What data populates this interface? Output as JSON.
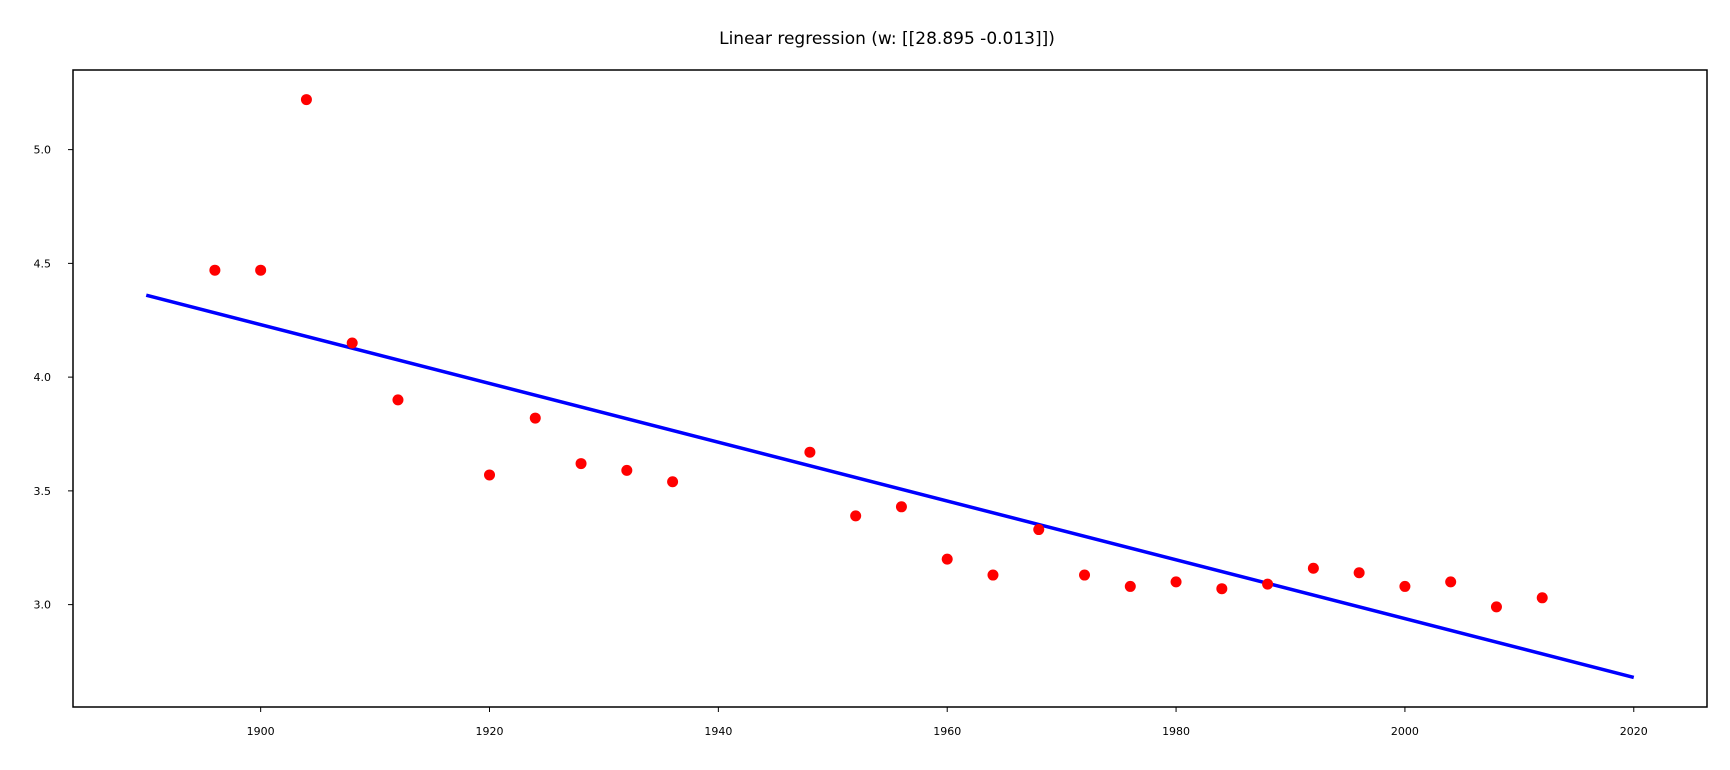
{
  "chart_data": {
    "type": "scatter",
    "title": "Linear regression (w: [[28.895 -0.013]])",
    "xlabel": "",
    "ylabel": "",
    "xlim": [
      1883.6,
      2026.4
    ],
    "ylim": [
      2.55,
      5.35
    ],
    "x_ticks": [
      1900,
      1920,
      1940,
      1960,
      1980,
      2000,
      2020
    ],
    "y_ticks": [
      3.0,
      3.5,
      4.0,
      4.5,
      5.0
    ],
    "grid": false,
    "legend": "none",
    "series": [
      {
        "type": "scatter",
        "color": "#ff0000",
        "points": [
          [
            1896,
            4.47
          ],
          [
            1900,
            4.47
          ],
          [
            1904,
            5.22
          ],
          [
            1908,
            4.15
          ],
          [
            1912,
            3.9
          ],
          [
            1920,
            3.57
          ],
          [
            1924,
            3.82
          ],
          [
            1928,
            3.62
          ],
          [
            1932,
            3.59
          ],
          [
            1936,
            3.54
          ],
          [
            1948,
            3.67
          ],
          [
            1952,
            3.39
          ],
          [
            1956,
            3.43
          ],
          [
            1960,
            3.2
          ],
          [
            1964,
            3.13
          ],
          [
            1968,
            3.33
          ],
          [
            1972,
            3.13
          ],
          [
            1976,
            3.08
          ],
          [
            1980,
            3.1
          ],
          [
            1984,
            3.07
          ],
          [
            1988,
            3.09
          ],
          [
            1992,
            3.16
          ],
          [
            1996,
            3.14
          ],
          [
            2000,
            3.08
          ],
          [
            2004,
            3.1
          ],
          [
            2008,
            2.99
          ],
          [
            2012,
            3.03
          ]
        ]
      },
      {
        "type": "line",
        "color": "#0000ff",
        "points": [
          [
            1890,
            4.36
          ],
          [
            2020,
            2.68
          ]
        ]
      }
    ]
  }
}
